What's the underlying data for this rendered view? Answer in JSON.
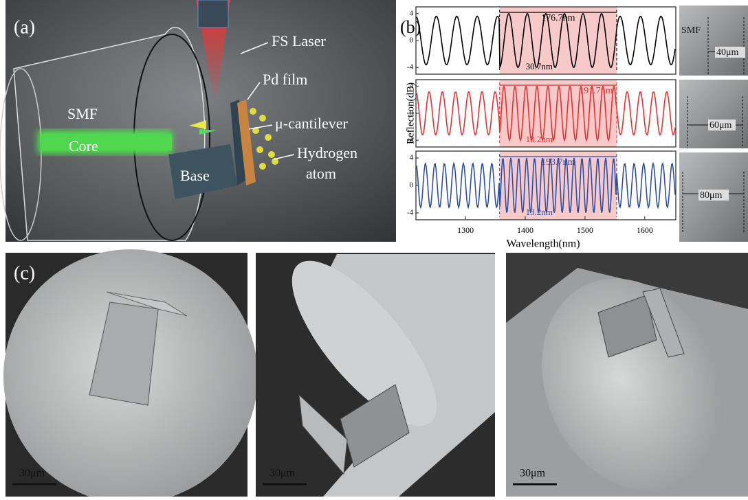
{
  "panel_a": {
    "label": "(a)",
    "texts": [
      "FS Laser",
      "Pd film",
      "SMF",
      "μ-cantilever",
      "Core",
      "Hydrogen",
      "atom",
      "Base"
    ]
  },
  "chart_data": {
    "type": "line",
    "label": "(b)",
    "ylabel": "Reflection(dB)",
    "xlabel": "Wavelength(nm)",
    "xlim": [
      1217,
      1652
    ],
    "xticks": [
      1300,
      1400,
      1500,
      1600
    ],
    "ylim": [
      -5,
      5
    ],
    "yticks": [
      -4,
      0,
      4
    ],
    "shaded_range": [
      1357,
      1553
    ],
    "series": [
      {
        "color": "#000000",
        "annotations": [
          "176.7nm",
          "30.7nm"
        ]
      },
      {
        "color": "#e8312f",
        "annotations": [
          "191.7nm",
          "18.2nm"
        ]
      },
      {
        "color": "#2b4fa8",
        "annotations": [
          "193.7nm",
          "13.2nm"
        ]
      }
    ]
  },
  "insets_b": {
    "texts": [
      "SMF",
      "40μm",
      "60μm",
      "80μm"
    ]
  },
  "panel_c": {
    "label": "(c)",
    "scale_bars": [
      "30μm",
      "30μm",
      "30μm"
    ]
  }
}
